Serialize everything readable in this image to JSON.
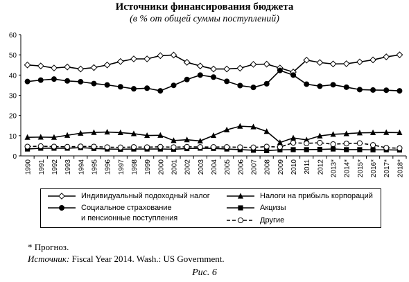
{
  "chart_data": {
    "type": "line",
    "title": "Источники финансирования бюджета",
    "subtitle": "(в % от общей суммы поступлений)",
    "categories": [
      "1990",
      "1991",
      "1992",
      "1993",
      "1994",
      "1995",
      "1996",
      "1997",
      "1998",
      "1999",
      "2000",
      "2001",
      "2002",
      "2003",
      "2004",
      "2005",
      "2006",
      "2007",
      "2008",
      "2009",
      "2010",
      "2011",
      "2012",
      "2013*",
      "2014*",
      "2015*",
      "2016*",
      "2017*",
      "2018*"
    ],
    "series": [
      {
        "name": "Индивидуальный подоходный налог",
        "color": "#000000",
        "marker": "diamond-open",
        "dash": false,
        "values": [
          45,
          44.5,
          43.5,
          44,
          43,
          43.7,
          45,
          46.7,
          48,
          48,
          49.6,
          49.9,
          46.3,
          44.5,
          43,
          43,
          43.4,
          45.3,
          45.4,
          43.5,
          41.5,
          47.4,
          46.2,
          45.5,
          45.6,
          46.5,
          47.5,
          49,
          50
        ]
      },
      {
        "name": "Налоги  на прибыль корпораций",
        "color": "#000000",
        "marker": "triangle",
        "dash": false,
        "values": [
          9.2,
          9.3,
          9.2,
          10.2,
          11.2,
          11.6,
          11.8,
          11.5,
          11,
          10.1,
          10.2,
          7.6,
          8,
          7.4,
          10.1,
          12.9,
          14.7,
          14.4,
          12.1,
          6.6,
          8.9,
          7.9,
          9.9,
          10.7,
          11,
          11.4,
          11.5,
          11.6,
          11.5
        ]
      },
      {
        "name": "Социальное страхование\nи  пенсионные поступления",
        "color": "#000000",
        "marker": "circle",
        "dash": false,
        "values": [
          36.8,
          37.5,
          38,
          37.1,
          36.7,
          35.8,
          35.1,
          34.2,
          33.2,
          33.5,
          32.2,
          34.9,
          37.8,
          40,
          39,
          36.9,
          34.8,
          33.9,
          35.7,
          42.3,
          40,
          35.5,
          34.5,
          35.2,
          34,
          32.8,
          32.6,
          32.5,
          32.2
        ]
      },
      {
        "name": "Акцизы",
        "color": "#000000",
        "marker": "square",
        "dash": false,
        "values": [
          3.4,
          3.8,
          3.8,
          3.8,
          4.1,
          3.7,
          3.4,
          3.3,
          3.4,
          3.4,
          3.4,
          3.3,
          3.6,
          3.8,
          3.7,
          3.4,
          3.1,
          2.8,
          2.6,
          3,
          3.1,
          3.1,
          3.2,
          3.4,
          3.1,
          3.1,
          3,
          3,
          2.9
        ]
      },
      {
        "name": "Другие",
        "color": "#000000",
        "marker": "circle-open",
        "dash": true,
        "values": [
          4.6,
          4.8,
          4.6,
          4.5,
          4.7,
          4.6,
          4.3,
          4.2,
          4.4,
          4.3,
          4.5,
          4.3,
          4.5,
          4.4,
          4.4,
          4.4,
          4.3,
          4.2,
          4.6,
          4.4,
          6.5,
          6.2,
          6.5,
          5.8,
          6.1,
          6.3,
          5.4,
          4,
          3.8
        ]
      }
    ],
    "ylim": [
      0,
      60
    ],
    "yticks": [
      0,
      10,
      20,
      30,
      40,
      50,
      60
    ],
    "grid": false,
    "footnote": "* Прогноз.",
    "source_label": "Источник:",
    "source": " Fiscal Year 2014. Wash.: US Government.",
    "caption": "Рис. 6"
  }
}
